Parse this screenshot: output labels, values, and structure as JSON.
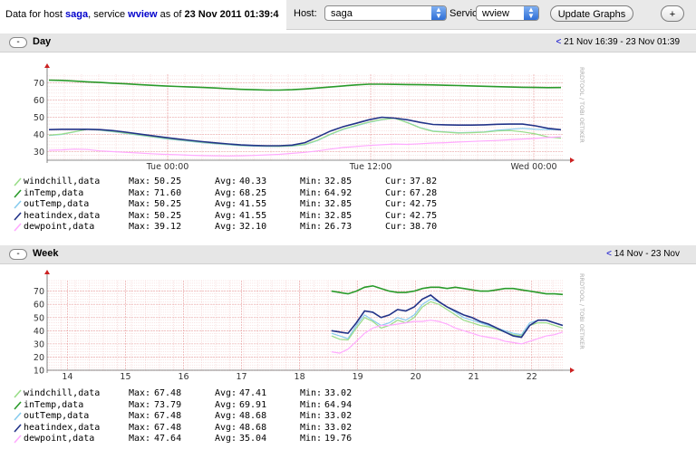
{
  "header": {
    "prefix": "Data for host ",
    "host": "saga",
    "mid1": ", service ",
    "service": "wview",
    "mid2": " as of ",
    "date": "23 Nov 2011 01:39:4"
  },
  "controls": {
    "host_label": "Host:",
    "host_value": "saga",
    "service_label": "Service:",
    "service_value": "wview",
    "update_label": "Update Graphs",
    "add_label": "+"
  },
  "sections": [
    {
      "toggle": "-",
      "title": "Day",
      "range_nav": "<",
      "range": " 21 Nov 16:39 - 23 Nov 01:39",
      "watermark": "RRDTOOL / TOBI OETIKER",
      "chart_data": {
        "type": "line",
        "ylim": [
          25,
          75
        ],
        "yticks": [
          "30",
          "40",
          "50",
          "60",
          "70"
        ],
        "xticks": [
          "Tue 00:00",
          "Tue 12:00",
          "Wed 00:00"
        ],
        "series": [
          {
            "name": "inTemp",
            "color": "#2a9a2a",
            "values": [
              71.6,
              71.4,
              71,
              70.6,
              70.2,
              69.8,
              69.4,
              69,
              68.6,
              68.2,
              67.9,
              67.6,
              67.3,
              67,
              66.6,
              66.2,
              66,
              65.8,
              65.8,
              66,
              66.4,
              67,
              67.6,
              68.2,
              68.8,
              69.2,
              69.2,
              69.1,
              69,
              68.9,
              68.8,
              68.6,
              68.4,
              68.2,
              68,
              67.8,
              67.6,
              67.4,
              67.3,
              67.2,
              67.28
            ]
          },
          {
            "name": "outTemp",
            "color": "#88ccee",
            "values": [
              39.4,
              40,
              41.5,
              43,
              42.4,
              41.6,
              40.6,
              39.6,
              38.6,
              37.6,
              36.8,
              36,
              35.2,
              34.6,
              34,
              33.4,
              33.2,
              33,
              33,
              33.2,
              34,
              36.5,
              40,
              43,
              45,
              47,
              48.5,
              49.5,
              47,
              44,
              42,
              41.5,
              41,
              41.2,
              41.5,
              42.5,
              43,
              43.5,
              43,
              42.8,
              42.75
            ]
          },
          {
            "name": "windchill",
            "color": "#99dd88",
            "values": [
              39.6,
              40.2,
              41.6,
              43,
              42.6,
              41.8,
              40.8,
              39.8,
              38.8,
              37.8,
              37,
              36.2,
              35.4,
              34.8,
              34.2,
              33.6,
              33.4,
              33.2,
              33.1,
              33.4,
              34.2,
              36.7,
              40.2,
              43.2,
              45.2,
              47.2,
              48.7,
              49.4,
              46.8,
              43.8,
              41.8,
              41.3,
              40.8,
              41,
              41.3,
              42,
              42.3,
              41.5,
              40.3,
              38.5,
              37.82
            ]
          },
          {
            "name": "heatindex",
            "color": "#223388",
            "values": [
              42.8,
              43,
              43,
              43,
              42.8,
              42.2,
              41.3,
              40.3,
              39.3,
              38.3,
              37.4,
              36.6,
              35.8,
              35.1,
              34.5,
              33.9,
              33.6,
              33.4,
              33.4,
              33.8,
              35.2,
              38.5,
              42,
              44.5,
              46.5,
              48.5,
              50,
              49.5,
              48.5,
              47,
              45.8,
              45.6,
              45.4,
              45.4,
              45.6,
              45.9,
              46,
              46,
              45,
              43.5,
              42.75
            ]
          },
          {
            "name": "dewpoint",
            "color": "#ffaaff",
            "values": [
              30.8,
              31,
              31.4,
              31.2,
              30.4,
              30,
              29.6,
              29.2,
              28.8,
              28.4,
              28.2,
              27.9,
              27.7,
              27.6,
              27.5,
              27.6,
              27.8,
              28.1,
              28.4,
              29,
              29.6,
              30.4,
              31.5,
              32.4,
              33,
              33.6,
              34,
              34.4,
              34.2,
              34.6,
              35,
              35.2,
              35.6,
              35.9,
              36.2,
              36.5,
              36.9,
              37.3,
              37.7,
              38.2,
              38.7
            ]
          }
        ]
      },
      "legend": [
        {
          "name": "windchill,data",
          "color": "#99dd88",
          "max": "50.25",
          "avg": "40.33",
          "min": "32.85",
          "cur": "37.82"
        },
        {
          "name": "inTemp,data",
          "color": "#2a9a2a",
          "max": "71.60",
          "avg": "68.25",
          "min": "64.92",
          "cur": "67.28"
        },
        {
          "name": "outTemp,data",
          "color": "#88ccee",
          "max": "50.25",
          "avg": "41.55",
          "min": "32.85",
          "cur": "42.75"
        },
        {
          "name": "heatindex,data",
          "color": "#223388",
          "max": "50.25",
          "avg": "41.55",
          "min": "32.85",
          "cur": "42.75"
        },
        {
          "name": "dewpoint,data",
          "color": "#ffaaff",
          "max": "39.12",
          "avg": "32.10",
          "min": "26.73",
          "cur": "38.70"
        }
      ],
      "legend_labels": {
        "max": "Max:",
        "avg": "Avg:",
        "min": "Min:",
        "cur": "Cur:"
      }
    },
    {
      "toggle": "-",
      "title": "Week",
      "range_nav": "<",
      "range": " 14 Nov - 23 Nov",
      "watermark": "RRDTOOL / TOBI OETIKER",
      "chart_data": {
        "type": "line",
        "ylim": [
          10,
          78
        ],
        "yticks": [
          "10",
          "20",
          "30",
          "40",
          "50",
          "60",
          "70"
        ],
        "xticks": [
          "14",
          "15",
          "16",
          "17",
          "18",
          "19",
          "20",
          "21",
          "22"
        ],
        "x_start": 13.65,
        "x_end": 22.55,
        "data_start": 18.55,
        "series": [
          {
            "name": "inTemp",
            "color": "#2a9a2a",
            "values": [
              70,
              69,
              68,
              70,
              73,
              74,
              72,
              70,
              69,
              69,
              70,
              72,
              73,
              73,
              72,
              73,
              72,
              71,
              70,
              70,
              71,
              72,
              72,
              71,
              70,
              69,
              68,
              68,
              67.5
            ]
          },
          {
            "name": "outTemp",
            "color": "#88ccee",
            "values": [
              38,
              36,
              34,
              44,
              52,
              48,
              44,
              46,
              50,
              48,
              52,
              60,
              64,
              62,
              58,
              54,
              50,
              48,
              46,
              44,
              42,
              40,
              38,
              37,
              46,
              48,
              48,
              46,
              44
            ]
          },
          {
            "name": "windchill",
            "color": "#99dd88",
            "values": [
              36,
              33.5,
              33,
              42,
              50,
              47,
              42,
              44,
              48,
              46,
              50,
              58,
              62,
              60,
              56,
              52,
              48,
              46,
              44,
              43,
              41,
              39,
              37,
              36,
              44,
              46,
              46,
              44,
              42
            ]
          },
          {
            "name": "heatindex",
            "color": "#223388",
            "values": [
              40,
              39,
              38,
              46,
              55,
              54,
              50,
              52,
              56,
              55,
              58,
              64,
              67,
              62,
              58,
              55,
              52,
              50,
              47,
              45,
              42,
              39,
              36,
              35,
              44,
              48,
              48,
              46,
              44
            ]
          },
          {
            "name": "dewpoint",
            "color": "#ffaaff",
            "values": [
              24,
              23,
              26,
              32,
              38,
              42,
              44,
              44,
              45,
              46,
              47,
              47,
              48,
              47,
              45,
              42,
              40,
              38,
              36,
              35,
              34,
              32,
              31,
              30,
              32,
              34,
              36,
              37,
              39
            ]
          }
        ]
      },
      "legend": [
        {
          "name": "windchill,data",
          "color": "#99dd88",
          "max": "67.48",
          "avg": "47.41",
          "min": "33.02"
        },
        {
          "name": "inTemp,data",
          "color": "#2a9a2a",
          "max": "73.79",
          "avg": "69.91",
          "min": "64.94"
        },
        {
          "name": "outTemp,data",
          "color": "#88ccee",
          "max": "67.48",
          "avg": "48.68",
          "min": "33.02"
        },
        {
          "name": "heatindex,data",
          "color": "#223388",
          "max": "67.48",
          "avg": "48.68",
          "min": "33.02"
        },
        {
          "name": "dewpoint,data",
          "color": "#ffaaff",
          "max": "47.64",
          "avg": "35.04",
          "min": "19.76"
        }
      ],
      "legend_labels": {
        "max": "Max:",
        "avg": "Avg:",
        "min": "Min:"
      }
    }
  ]
}
